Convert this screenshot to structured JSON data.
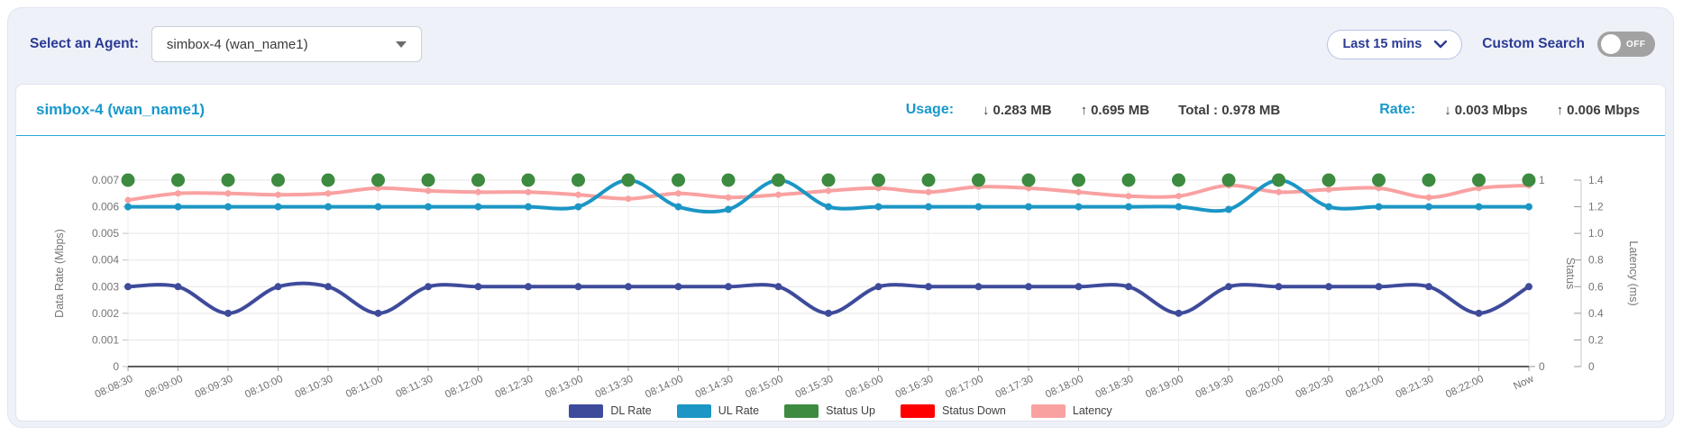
{
  "toolbar": {
    "agent_select_label": "Select an Agent:",
    "agent_selected": "simbox-4 (wan_name1)",
    "time_range": "Last 15 mins",
    "custom_search_label": "Custom Search",
    "toggle_state": "OFF"
  },
  "panel": {
    "title": "simbox-4 (wan_name1)",
    "usage": {
      "label": "Usage:",
      "down_arrow": "↓",
      "down": "0.283 MB",
      "up_arrow": "↑",
      "up": "0.695 MB",
      "total": "Total : 0.978 MB"
    },
    "rate": {
      "label": "Rate:",
      "down_arrow": "↓",
      "down": "0.003 Mbps",
      "up_arrow": "↑",
      "up": "0.006 Mbps"
    }
  },
  "colors": {
    "accent_navy": "#2b3a94",
    "accent_cyan": "#1899cc",
    "header_divider": "#2aa7d8",
    "toggle_off_bg": "#a2a2a2",
    "dl_rate": "#3e4b9b",
    "ul_rate": "#1b96c5",
    "status_up": "#3d8b40",
    "status_down": "#ff0000",
    "latency": "#f9a1a1"
  },
  "chart_data": {
    "type": "line",
    "title": "",
    "grid": true,
    "legend_position": "bottom",
    "x": [
      "08:08:30",
      "08:09:00",
      "08:09:30",
      "08:10:00",
      "08:10:30",
      "08:11:00",
      "08:11:30",
      "08:12:00",
      "08:12:30",
      "08:13:00",
      "08:13:30",
      "08:14:00",
      "08:14:30",
      "08:15:00",
      "08:15:30",
      "08:16:00",
      "08:16:30",
      "08:17:00",
      "08:17:30",
      "08:18:00",
      "08:18:30",
      "08:19:00",
      "08:19:30",
      "08:20:00",
      "08:20:30",
      "08:21:00",
      "08:21:30",
      "08:22:00",
      "Now"
    ],
    "axes": {
      "left": {
        "label": "Data Rate (Mbps)",
        "min": 0,
        "max": 0.007,
        "ticks": [
          "0",
          "0.001",
          "0.002",
          "0.003",
          "0.004",
          "0.005",
          "0.006",
          "0.007"
        ]
      },
      "status": {
        "label": "Status",
        "min": 0,
        "max": 1,
        "ticks": [
          "0",
          "1"
        ]
      },
      "latency": {
        "label": "Latency (ms)",
        "min": 0,
        "max": 1.4,
        "ticks": [
          "0",
          "0.2",
          "0.4",
          "0.6",
          "0.8",
          "1.0",
          "1.2",
          "1.4"
        ]
      }
    },
    "series": [
      {
        "name": "DL Rate",
        "axis": "left",
        "color": "#3e4b9b",
        "style": "line",
        "marker_radius": 4,
        "values": [
          0.003,
          0.003,
          0.002,
          0.003,
          0.003,
          0.002,
          0.003,
          0.003,
          0.003,
          0.003,
          0.003,
          0.003,
          0.003,
          0.003,
          0.002,
          0.003,
          0.003,
          0.003,
          0.003,
          0.003,
          0.003,
          0.002,
          0.003,
          0.003,
          0.003,
          0.003,
          0.003,
          0.002,
          0.003
        ]
      },
      {
        "name": "UL Rate",
        "axis": "left",
        "color": "#1b96c5",
        "style": "line",
        "marker_radius": 4,
        "values": [
          0.006,
          0.006,
          0.006,
          0.006,
          0.006,
          0.006,
          0.006,
          0.006,
          0.006,
          0.006,
          0.007,
          0.006,
          0.0059,
          0.007,
          0.006,
          0.006,
          0.006,
          0.006,
          0.006,
          0.006,
          0.006,
          0.006,
          0.0059,
          0.007,
          0.006,
          0.006,
          0.006,
          0.006,
          0.006
        ]
      },
      {
        "name": "Status Up",
        "axis": "status",
        "color": "#3d8b40",
        "style": "points",
        "marker_radius": 7.5,
        "values": [
          1,
          1,
          1,
          1,
          1,
          1,
          1,
          1,
          1,
          1,
          1,
          1,
          1,
          1,
          1,
          1,
          1,
          1,
          1,
          1,
          1,
          1,
          1,
          1,
          1,
          1,
          1,
          1,
          1
        ]
      },
      {
        "name": "Status Down",
        "axis": "status",
        "color": "#ff0000",
        "style": "points",
        "marker_radius": 7.5,
        "values": []
      },
      {
        "name": "Latency",
        "axis": "latency",
        "color": "#f9a1a1",
        "style": "line",
        "marker_radius": 3.5,
        "values": [
          1.25,
          1.3,
          1.3,
          1.29,
          1.3,
          1.34,
          1.32,
          1.31,
          1.31,
          1.29,
          1.26,
          1.3,
          1.27,
          1.29,
          1.32,
          1.34,
          1.31,
          1.35,
          1.34,
          1.31,
          1.28,
          1.28,
          1.36,
          1.31,
          1.33,
          1.34,
          1.27,
          1.34,
          1.36
        ]
      }
    ]
  }
}
